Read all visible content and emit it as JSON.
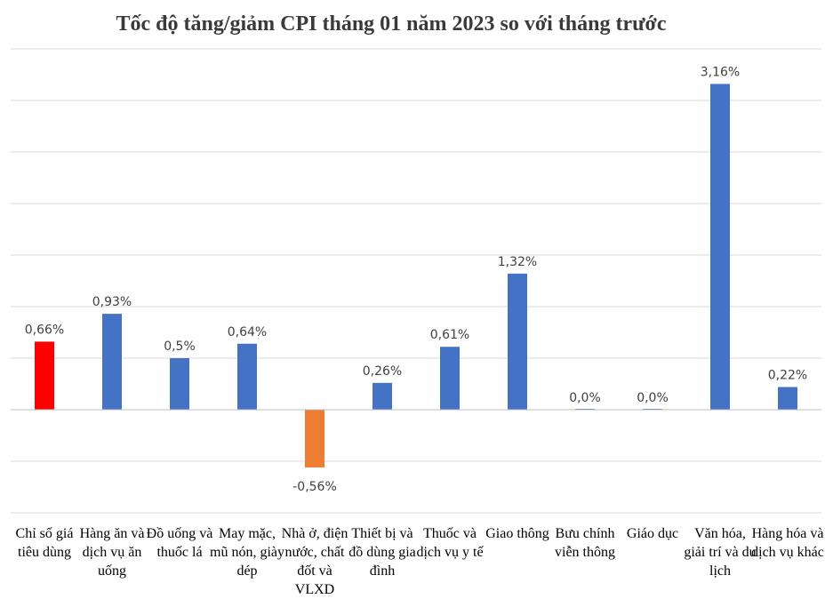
{
  "chart_data": {
    "type": "bar",
    "title": "Tốc độ tăng/giảm CPI tháng 01 năm 2023 so với tháng trước",
    "categories": [
      "Chỉ số giá tiêu dùng",
      "Hàng ăn và dịch vụ ăn uống",
      "Đồ uống và thuốc lá",
      "May mặc, mũ nón, giày dép",
      "Nhà ở, điện nước, chất đốt và VLXD",
      "Thiết bị và đồ dùng gia đình",
      "Thuốc và dịch vụ y tế",
      "Giao thông",
      "Bưu chính viễn thông",
      "Giáo dục",
      "Văn hóa, giải trí và du lịch",
      "Hàng hóa và dịch vụ khác"
    ],
    "values": [
      0.66,
      0.93,
      0.5,
      0.64,
      -0.56,
      0.26,
      0.61,
      1.32,
      0.0,
      0.0,
      3.16,
      0.22
    ],
    "data_labels": [
      "0,66%",
      "0,93%",
      "0,5%",
      "0,64%",
      "-0,56%",
      "0,26%",
      "0,61%",
      "1,32%",
      "0,0%",
      "0,0%",
      "3,16%",
      "0,22%"
    ],
    "bar_colors": [
      "#ff0000",
      "#4472c4",
      "#4472c4",
      "#4472c4",
      "#ed7d31",
      "#4472c4",
      "#4472c4",
      "#4472c4",
      "#4472c4",
      "#4472c4",
      "#4472c4",
      "#4472c4"
    ],
    "ylim": [
      -1.0,
      3.5
    ],
    "grid": true,
    "legend": "none",
    "xlabel": "",
    "ylabel": ""
  }
}
